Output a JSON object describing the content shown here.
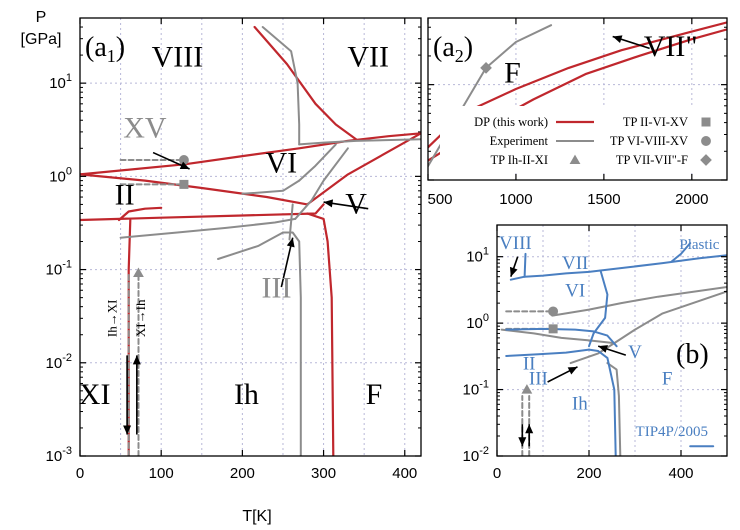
{
  "colors": {
    "dp_red": "#c0272d",
    "experiment_gray": "#8c8c8c",
    "tip4p_blue": "#4a7fc1",
    "grid": "#b8b8d8",
    "axis": "#000000"
  },
  "chart_data": [
    {
      "id": "a1",
      "type": "line",
      "panel_label": "(a",
      "panel_label_sub": "1",
      "panel_label_close": ")",
      "xlabel": "T[K]",
      "ylabel": "P\n[GPa]",
      "ylabel_line1": "P",
      "ylabel_line2": "[GPa]",
      "yscale": "log",
      "xlim": [
        0,
        420
      ],
      "ylim": [
        0.001,
        50
      ],
      "xticks": [
        0,
        100,
        200,
        300,
        400
      ],
      "xtick_labels": [
        "0",
        "100",
        "200",
        "300",
        "400"
      ],
      "yticks": [
        0.001,
        0.01,
        0.1,
        1,
        10
      ],
      "ytick_labels": [
        {
          "base": "10",
          "exp": "-3"
        },
        {
          "base": "10",
          "exp": "-2"
        },
        {
          "base": "10",
          "exp": "-1"
        },
        {
          "base": "10",
          "exp": "0"
        },
        {
          "base": "10",
          "exp": "1"
        }
      ],
      "grid": true,
      "phase_labels": [
        {
          "text": "VIII",
          "x": 120,
          "y": 15
        },
        {
          "text": "VII",
          "x": 355,
          "y": 15
        },
        {
          "text": "XV",
          "x": 80,
          "y": 2.6,
          "color": "#8c8c8c"
        },
        {
          "text": "VI",
          "x": 248,
          "y": 1.1
        },
        {
          "text": "II",
          "x": 55,
          "y": 0.5
        },
        {
          "text": "V",
          "x": 340,
          "y": 0.4
        },
        {
          "text": "III",
          "x": 242,
          "y": 0.05,
          "color": "#8c8c8c"
        },
        {
          "text": "XI",
          "x": 18,
          "y": 0.0036
        },
        {
          "text": "Ih",
          "x": 205,
          "y": 0.0036
        },
        {
          "text": "F",
          "x": 362,
          "y": 0.0036
        }
      ],
      "transition_labels": [
        {
          "text": "Ih→XI",
          "x": 45,
          "y": 0.03
        },
        {
          "text": "XI→Ih",
          "x": 80,
          "y": 0.03
        }
      ],
      "series": [
        {
          "style": "dp",
          "x": [
            215,
            255,
            290,
            315,
            340
          ],
          "y": [
            40,
            16,
            6,
            3.6,
            2.5
          ]
        },
        {
          "style": "dp",
          "x": [
            0,
            130,
            200,
            270,
            330,
            380,
            420
          ],
          "y": [
            1.05,
            1.35,
            1.65,
            2.0,
            2.4,
            2.7,
            2.9
          ]
        },
        {
          "style": "dp",
          "x": [
            0,
            80,
            150,
            230,
            280
          ],
          "y": [
            1.05,
            0.9,
            0.75,
            0.6,
            0.5
          ]
        },
        {
          "style": "dp",
          "x": [
            280,
            330,
            420
          ],
          "y": [
            0.5,
            1.05,
            2.9
          ]
        },
        {
          "style": "dp",
          "x": [
            0,
            100,
            200,
            290,
            300
          ],
          "y": [
            0.34,
            0.36,
            0.38,
            0.4,
            0.5
          ]
        },
        {
          "style": "dp",
          "x": [
            48,
            60,
            80,
            100
          ],
          "y": [
            0.34,
            0.42,
            0.45,
            0.46
          ]
        },
        {
          "style": "dp",
          "x": [
            60,
            60,
            62
          ],
          "y": [
            0.001,
            0.1,
            0.34
          ]
        },
        {
          "style": "dp",
          "x": [
            280,
            300,
            305,
            310,
            312
          ],
          "y": [
            0.4,
            0.35,
            0.2,
            0.05,
            0.001
          ]
        },
        {
          "style": "exp",
          "x": [
            225,
            260,
            268,
            270,
            270
          ],
          "y": [
            40,
            22,
            10,
            3.6,
            2.2
          ]
        },
        {
          "style": "exp",
          "x": [
            270,
            300,
            340,
            420
          ],
          "y": [
            2.2,
            2.3,
            2.4,
            2.5
          ]
        },
        {
          "style": "exp",
          "x": [
            200,
            250,
            270
          ],
          "y": [
            0.65,
            0.7,
            0.9
          ]
        },
        {
          "style": "exp",
          "x": [
            270,
            290,
            315
          ],
          "y": [
            0.9,
            1.3,
            2.2
          ]
        },
        {
          "style": "exp",
          "x": [
            50,
            120,
            180,
            240,
            265
          ],
          "y": [
            0.22,
            0.25,
            0.28,
            0.32,
            0.35
          ]
        },
        {
          "style": "exp",
          "x": [
            265,
            285,
            300,
            330
          ],
          "y": [
            0.35,
            0.55,
            0.9,
            2.0
          ]
        },
        {
          "style": "exp",
          "x": [
            170,
            220,
            250
          ],
          "y": [
            0.13,
            0.18,
            0.25
          ]
        },
        {
          "style": "exp",
          "x": [
            250,
            262,
            270,
            272,
            272
          ],
          "y": [
            0.25,
            0.25,
            0.2,
            0.05,
            0.001
          ]
        },
        {
          "style": "exp",
          "x": [
            258,
            262
          ],
          "y": [
            0.21,
            0.5
          ]
        },
        {
          "style": "exp_dashed",
          "x": [
            50,
            130
          ],
          "y": [
            1.5,
            1.5
          ]
        },
        {
          "style": "exp_dashed",
          "x": [
            50,
            130
          ],
          "y": [
            0.82,
            0.82
          ]
        },
        {
          "style": "exp_dashed",
          "x": [
            60,
            60
          ],
          "y": [
            0.001,
            0.09
          ]
        },
        {
          "style": "exp_dashed",
          "x": [
            72,
            72
          ],
          "y": [
            0.001,
            0.09
          ]
        }
      ],
      "markers": [
        {
          "shape": "circle",
          "x": 128,
          "y": 1.5
        },
        {
          "shape": "square",
          "x": 128,
          "y": 0.82
        },
        {
          "shape": "triangle",
          "x": 72,
          "y": 0.092
        }
      ],
      "arrows": [
        {
          "from": [
            90,
            1.8
          ],
          "to": [
            135,
            1.2
          ]
        },
        {
          "from": [
            355,
            0.45
          ],
          "to": [
            300,
            0.53
          ]
        },
        {
          "from": [
            248,
            0.065
          ],
          "to": [
            262,
            0.22
          ]
        },
        {
          "from": [
            58,
            0.012
          ],
          "to": [
            58,
            0.0017
          ]
        },
        {
          "from": [
            70,
            0.0017
          ],
          "to": [
            70,
            0.012
          ]
        }
      ]
    },
    {
      "id": "a2",
      "type": "line",
      "panel_label": "(a",
      "panel_label_sub": "2",
      "panel_label_close": ")",
      "yscale": "log",
      "xlim": [
        500,
        2200
      ],
      "ylim": [
        1,
        50
      ],
      "xticks": [
        500,
        1000,
        1500,
        2000
      ],
      "xtick_labels": [
        "500",
        "1000",
        "1500",
        "2000"
      ],
      "grid": true,
      "phase_labels": [
        {
          "text": "F",
          "x": 980,
          "y": 10.5
        },
        {
          "text": "VII\"",
          "x": 1880,
          "y": 20
        }
      ],
      "series": [
        {
          "style": "dp",
          "x": [
            500,
            700,
            1000,
            1300,
            1600,
            2000,
            2200
          ],
          "y": [
            2.2,
            5,
            9,
            15,
            23,
            36,
            45
          ]
        },
        {
          "style": "dp",
          "x": [
            500,
            800,
            1100,
            1400,
            1700,
            2000,
            2200
          ],
          "y": [
            1.6,
            3.5,
            7,
            13,
            20,
            30,
            38
          ]
        },
        {
          "style": "exp",
          "x": [
            500,
            830,
            1000,
            1200
          ],
          "y": [
            1.4,
            15,
            28,
            42
          ]
        }
      ],
      "markers": [
        {
          "shape": "diamond",
          "x": 830,
          "y": 15
        }
      ],
      "arrows": [
        {
          "from": [
            1760,
            24
          ],
          "to": [
            1550,
            32
          ]
        }
      ],
      "legend": {
        "placement": "bottom",
        "entries": [
          {
            "label": "DP (this work)",
            "swatch": "red-line"
          },
          {
            "label": "Experiment",
            "swatch": "gray-line"
          },
          {
            "label": "TP II-VI-XV",
            "swatch": "square"
          },
          {
            "label": "TP VI-VIII-XV",
            "swatch": "circle"
          },
          {
            "label": "TP Ih-II-XI",
            "swatch": "triangle"
          },
          {
            "label": "TP VII-VII\"-F",
            "swatch": "diamond"
          }
        ]
      }
    },
    {
      "id": "b",
      "type": "line",
      "panel_label": "(b)",
      "yscale": "log",
      "xlim": [
        0,
        500
      ],
      "ylim": [
        0.01,
        30
      ],
      "xticks": [
        0,
        200,
        400
      ],
      "xtick_labels": [
        "0",
        "200",
        "400"
      ],
      "yticks": [
        0.01,
        0.1,
        1,
        10
      ],
      "ytick_labels": [
        {
          "base": "10",
          "exp": "-2"
        },
        {
          "base": "10",
          "exp": "-1"
        },
        {
          "base": "10",
          "exp": "0"
        },
        {
          "base": "10",
          "exp": "1"
        }
      ],
      "grid": true,
      "phase_labels": [
        {
          "text": "VIII",
          "x": 40,
          "y": 13,
          "color": "#4a7fc1"
        },
        {
          "text": "VII",
          "x": 170,
          "y": 6.5,
          "color": "#4a7fc1"
        },
        {
          "text": "Plastic",
          "x": 440,
          "y": 13,
          "color": "#4a7fc1"
        },
        {
          "text": "VI",
          "x": 170,
          "y": 2.5,
          "color": "#4a7fc1"
        },
        {
          "text": "II",
          "x": 70,
          "y": 0.2,
          "color": "#4a7fc1"
        },
        {
          "text": "V",
          "x": 300,
          "y": 0.3,
          "color": "#4a7fc1"
        },
        {
          "text": "III",
          "x": 90,
          "y": 0.12,
          "color": "#4a7fc1"
        },
        {
          "text": "F",
          "x": 370,
          "y": 0.12,
          "color": "#4a7fc1"
        },
        {
          "text": "Ih",
          "x": 180,
          "y": 0.05,
          "color": "#4a7fc1"
        },
        {
          "text": "TIP4P/2005",
          "x": 380,
          "y": 0.02,
          "color": "#4a7fc1"
        }
      ],
      "series": [
        {
          "style": "exp",
          "x": [
            120,
            200,
            270,
            350,
            500
          ],
          "y": [
            1.3,
            1.6,
            2.0,
            2.5,
            3.5
          ]
        },
        {
          "style": "exp",
          "x": [
            10,
            80,
            140,
            200,
            255
          ],
          "y": [
            0.8,
            0.7,
            0.6,
            0.55,
            0.5
          ]
        },
        {
          "style": "exp",
          "x": [
            255,
            300,
            360,
            500
          ],
          "y": [
            0.5,
            0.8,
            1.4,
            3.0
          ]
        },
        {
          "style": "exp",
          "x": [
            160,
            220,
            255
          ],
          "y": [
            0.25,
            0.35,
            0.5
          ]
        },
        {
          "style": "exp",
          "x": [
            240,
            260,
            265,
            268
          ],
          "y": [
            0.25,
            0.2,
            0.08,
            0.01
          ]
        },
        {
          "style": "exp_dashed",
          "x": [
            20,
            125
          ],
          "y": [
            1.5,
            1.5
          ]
        },
        {
          "style": "exp_dashed",
          "x": [
            20,
            125
          ],
          "y": [
            0.82,
            0.82
          ]
        },
        {
          "style": "exp_dashed",
          "x": [
            55,
            55
          ],
          "y": [
            0.01,
            0.08
          ]
        },
        {
          "style": "exp_dashed",
          "x": [
            70,
            70
          ],
          "y": [
            0.01,
            0.08
          ]
        },
        {
          "style": "tip4p",
          "x": [
            30,
            60,
            100,
            150,
            200,
            225
          ],
          "y": [
            4.5,
            5.0,
            5.2,
            5.6,
            5.9,
            6.2
          ]
        },
        {
          "style": "tip4p",
          "x": [
            225,
            290,
            360,
            440,
            500
          ],
          "y": [
            6.2,
            7.0,
            8.0,
            9.5,
            10.5
          ]
        },
        {
          "style": "tip4p",
          "x": [
            380,
            400,
            420
          ],
          "y": [
            8.5,
            11,
            16
          ]
        },
        {
          "style": "tip4p",
          "x": [
            60,
            62
          ],
          "y": [
            5.0,
            11
          ]
        },
        {
          "style": "tip4p",
          "x": [
            225,
            240,
            235,
            210,
            200
          ],
          "y": [
            6.2,
            2.7,
            1.2,
            0.7,
            0.45
          ]
        },
        {
          "style": "tip4p",
          "x": [
            20,
            100,
            170,
            210,
            240,
            260
          ],
          "y": [
            0.8,
            0.82,
            0.8,
            0.75,
            0.65,
            0.45
          ]
        },
        {
          "style": "tip4p",
          "x": [
            20,
            90,
            150,
            200
          ],
          "y": [
            0.32,
            0.34,
            0.36,
            0.4
          ]
        },
        {
          "style": "tip4p",
          "x": [
            200,
            220,
            240,
            255,
            258
          ],
          "y": [
            0.4,
            0.38,
            0.3,
            0.1,
            0.01
          ]
        },
        {
          "style": "tip4p",
          "x": [
            420,
            470
          ],
          "y": [
            0.014,
            0.014
          ]
        }
      ],
      "markers": [
        {
          "shape": "circle",
          "x": 122,
          "y": 1.5
        },
        {
          "shape": "square",
          "x": 122,
          "y": 0.82
        },
        {
          "shape": "triangle",
          "x": 65,
          "y": 0.1
        }
      ],
      "arrows": [
        {
          "from": [
            45,
            10
          ],
          "to": [
            30,
            5
          ]
        },
        {
          "from": [
            280,
            0.33
          ],
          "to": [
            220,
            0.45
          ]
        },
        {
          "from": [
            110,
            0.13
          ],
          "to": [
            175,
            0.22
          ]
        },
        {
          "from": [
            55,
            0.03
          ],
          "to": [
            55,
            0.014
          ]
        },
        {
          "from": [
            70,
            0.014
          ],
          "to": [
            70,
            0.03
          ]
        }
      ]
    }
  ]
}
